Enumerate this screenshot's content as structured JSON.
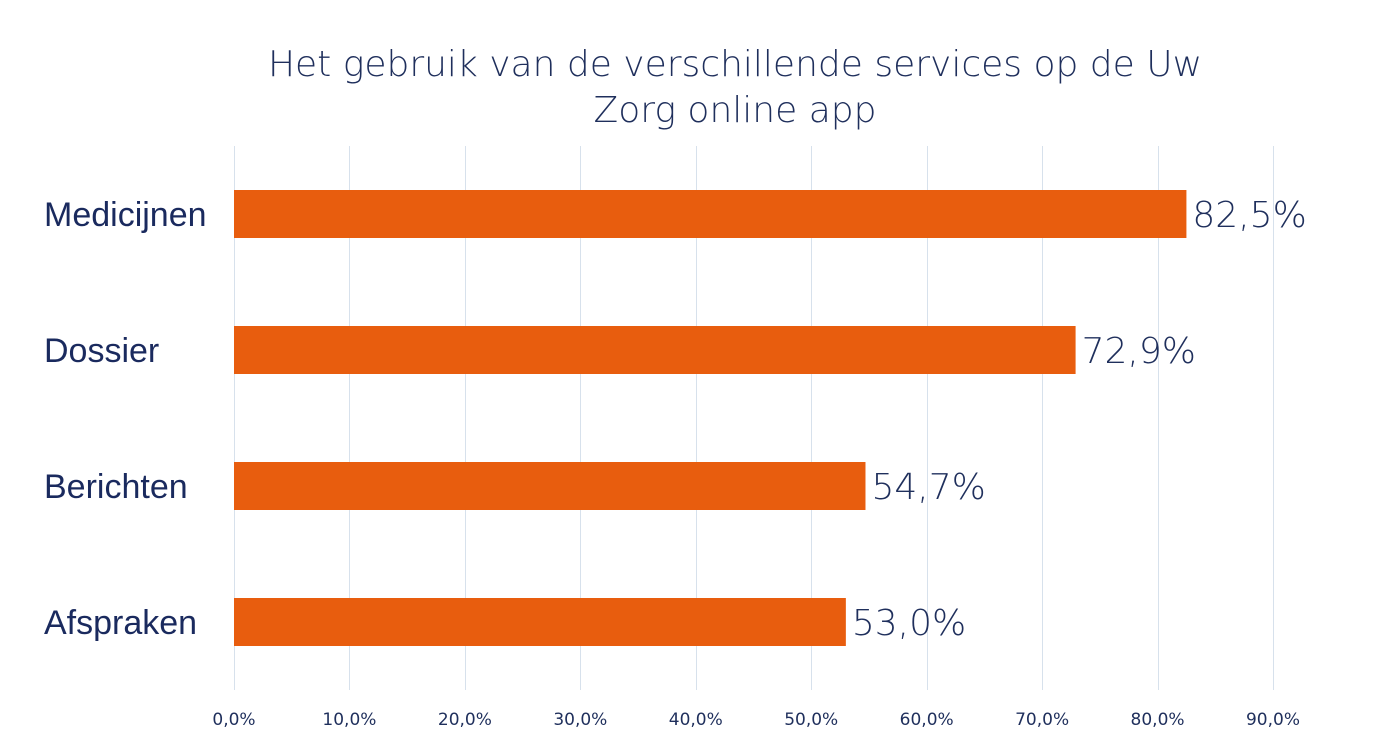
{
  "chart_data": {
    "type": "bar",
    "orientation": "horizontal",
    "title": "Het gebruik van de verschillende services op de Uw Zorg online app",
    "title_lines": [
      "Het gebruik van de verschillende services op de Uw",
      "Zorg online app"
    ],
    "categories": [
      "Medicijnen",
      "Dossier",
      "Berichten",
      "Afspraken"
    ],
    "values": [
      82.5,
      72.9,
      54.7,
      53.0
    ],
    "data_labels": [
      "82,5%",
      "72,9%",
      "54,7%",
      "53,0%"
    ],
    "x_ticks": [
      0,
      10,
      20,
      30,
      40,
      50,
      60,
      70,
      80,
      90
    ],
    "x_tick_labels": [
      "0,0%",
      "10,0%",
      "20,0%",
      "30,0%",
      "40,0%",
      "50,0%",
      "60,0%",
      "70,0%",
      "80,0%",
      "90,0%"
    ],
    "xlim": [
      0,
      90
    ],
    "xlabel": "",
    "ylabel": "",
    "grid": "vertical",
    "legend": "none",
    "colors": {
      "bar": "#e85d0e",
      "grid": "#d7e1ec",
      "text": "#1f2f5c"
    }
  }
}
